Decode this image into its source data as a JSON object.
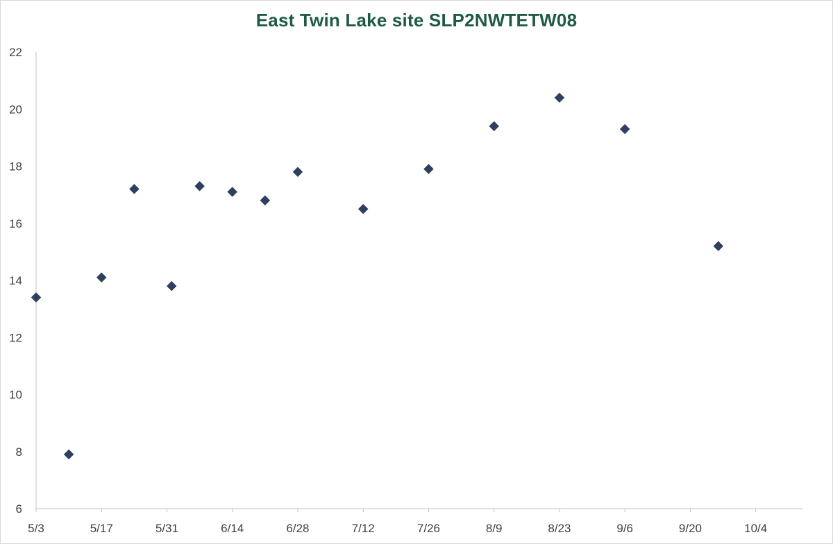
{
  "chart_data": {
    "type": "scatter",
    "title": "East Twin Lake site SLP2NWTETW08",
    "xlabel": "",
    "ylabel": "",
    "grid": false,
    "legend": "none",
    "marker": "diamond",
    "color": "#2f3f5e",
    "xlim": [
      "5/3",
      "10/14"
    ],
    "ylim": [
      6,
      22
    ],
    "yticks": [
      6,
      8,
      10,
      12,
      14,
      16,
      18,
      20,
      22
    ],
    "xticks": [
      "5/3",
      "5/17",
      "5/31",
      "6/14",
      "6/28",
      "7/12",
      "7/26",
      "8/9",
      "8/23",
      "9/6",
      "9/20",
      "10/4"
    ],
    "points": [
      {
        "x": "5/3",
        "y": 13.4
      },
      {
        "x": "5/10",
        "y": 7.9
      },
      {
        "x": "5/17",
        "y": 14.1
      },
      {
        "x": "5/24",
        "y": 17.2
      },
      {
        "x": "6/1",
        "y": 13.8
      },
      {
        "x": "6/7",
        "y": 17.3
      },
      {
        "x": "6/14",
        "y": 17.1
      },
      {
        "x": "6/21",
        "y": 16.8
      },
      {
        "x": "6/28",
        "y": 17.8
      },
      {
        "x": "7/12",
        "y": 16.5
      },
      {
        "x": "7/26",
        "y": 17.9
      },
      {
        "x": "8/9",
        "y": 19.4
      },
      {
        "x": "8/23",
        "y": 20.4
      },
      {
        "x": "9/6",
        "y": 19.3
      },
      {
        "x": "9/26",
        "y": 15.2
      }
    ]
  }
}
